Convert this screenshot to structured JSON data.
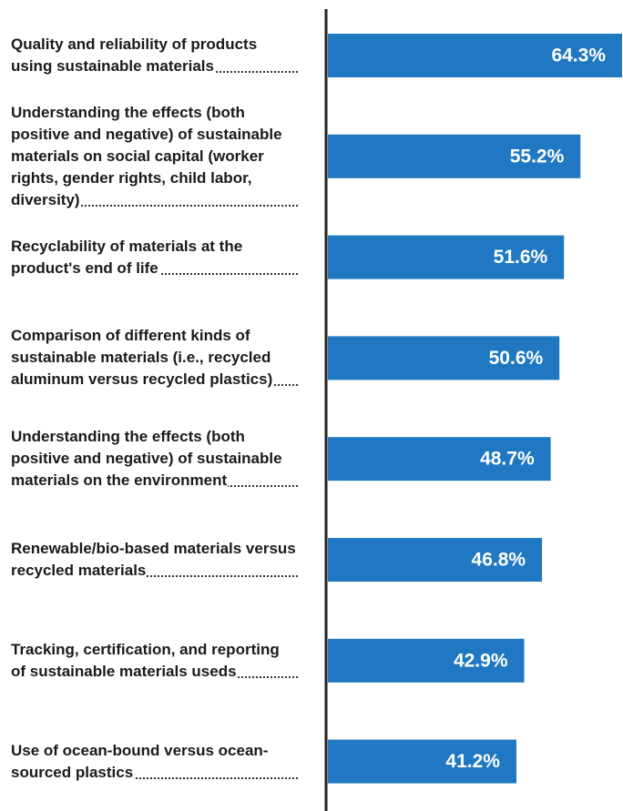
{
  "chart_data": {
    "type": "bar",
    "orientation": "horizontal",
    "categories": [
      "Quality and reliability of products using sustainable materials",
      "Understanding the effects (both positive and negative) of sustainable materials on social capital (worker rights, gender rights, child labor, diversity)",
      "Recyclability of materials at the product's end of life",
      "Comparison of different kinds of sustainable materials (i.e., recycled aluminum versus recycled plastics)",
      "Understanding the effects (both positive and negative) of sustainable materials on the environment",
      "Renewable/bio-based materials versus recycled materials",
      "Tracking, certification, and reporting of sustainable materials useds",
      "Use of ocean-bound versus ocean-sourced plastics"
    ],
    "values": [
      64.3,
      55.2,
      51.6,
      50.6,
      48.7,
      46.8,
      42.9,
      41.2
    ],
    "value_labels": [
      "64.3%",
      "55.2%",
      "51.6%",
      "50.6%",
      "48.7%",
      "46.8%",
      "42.9%",
      "41.2%"
    ],
    "color": "#1f78c1"
  }
}
